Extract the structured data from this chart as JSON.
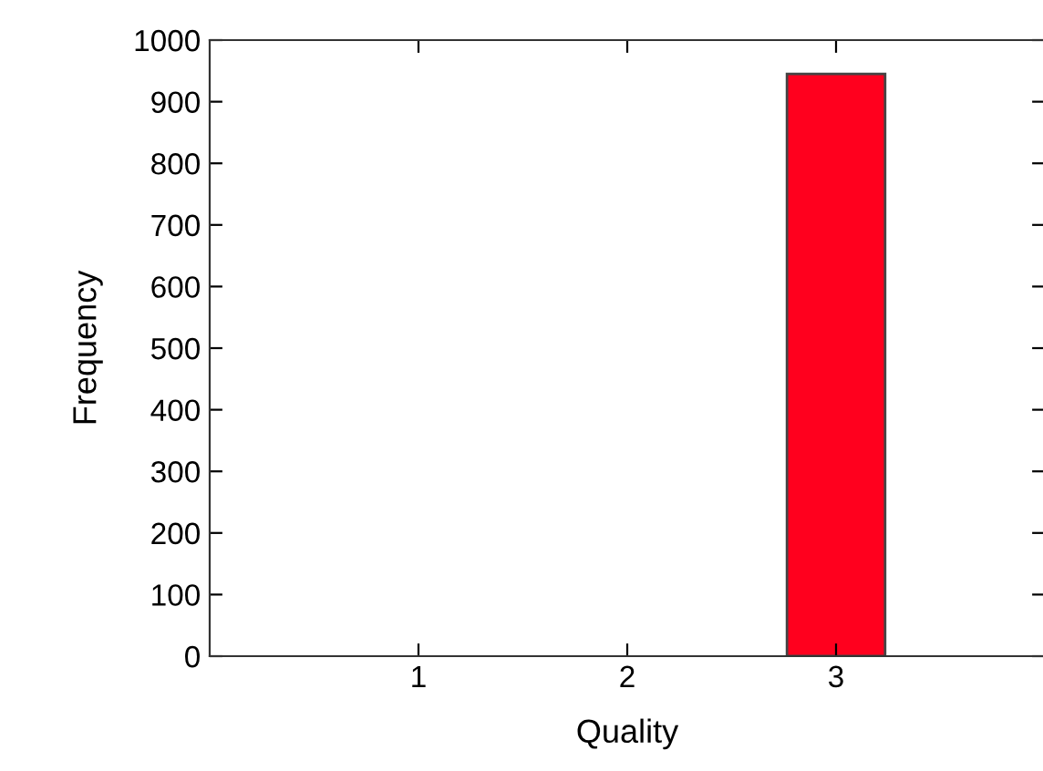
{
  "chart_data": {
    "type": "bar",
    "xlabel": "Quality",
    "ylabel": "Frequency",
    "x": [
      3
    ],
    "values": [
      945
    ],
    "color": "#ff001e",
    "xlim": [
      0,
      4
    ],
    "xticks": [
      1,
      2,
      3
    ],
    "ylim": [
      0,
      1000
    ],
    "yticks": [
      0,
      100,
      200,
      300,
      400,
      500,
      600,
      700,
      800,
      900,
      1000
    ],
    "grid": false,
    "legend": false
  }
}
